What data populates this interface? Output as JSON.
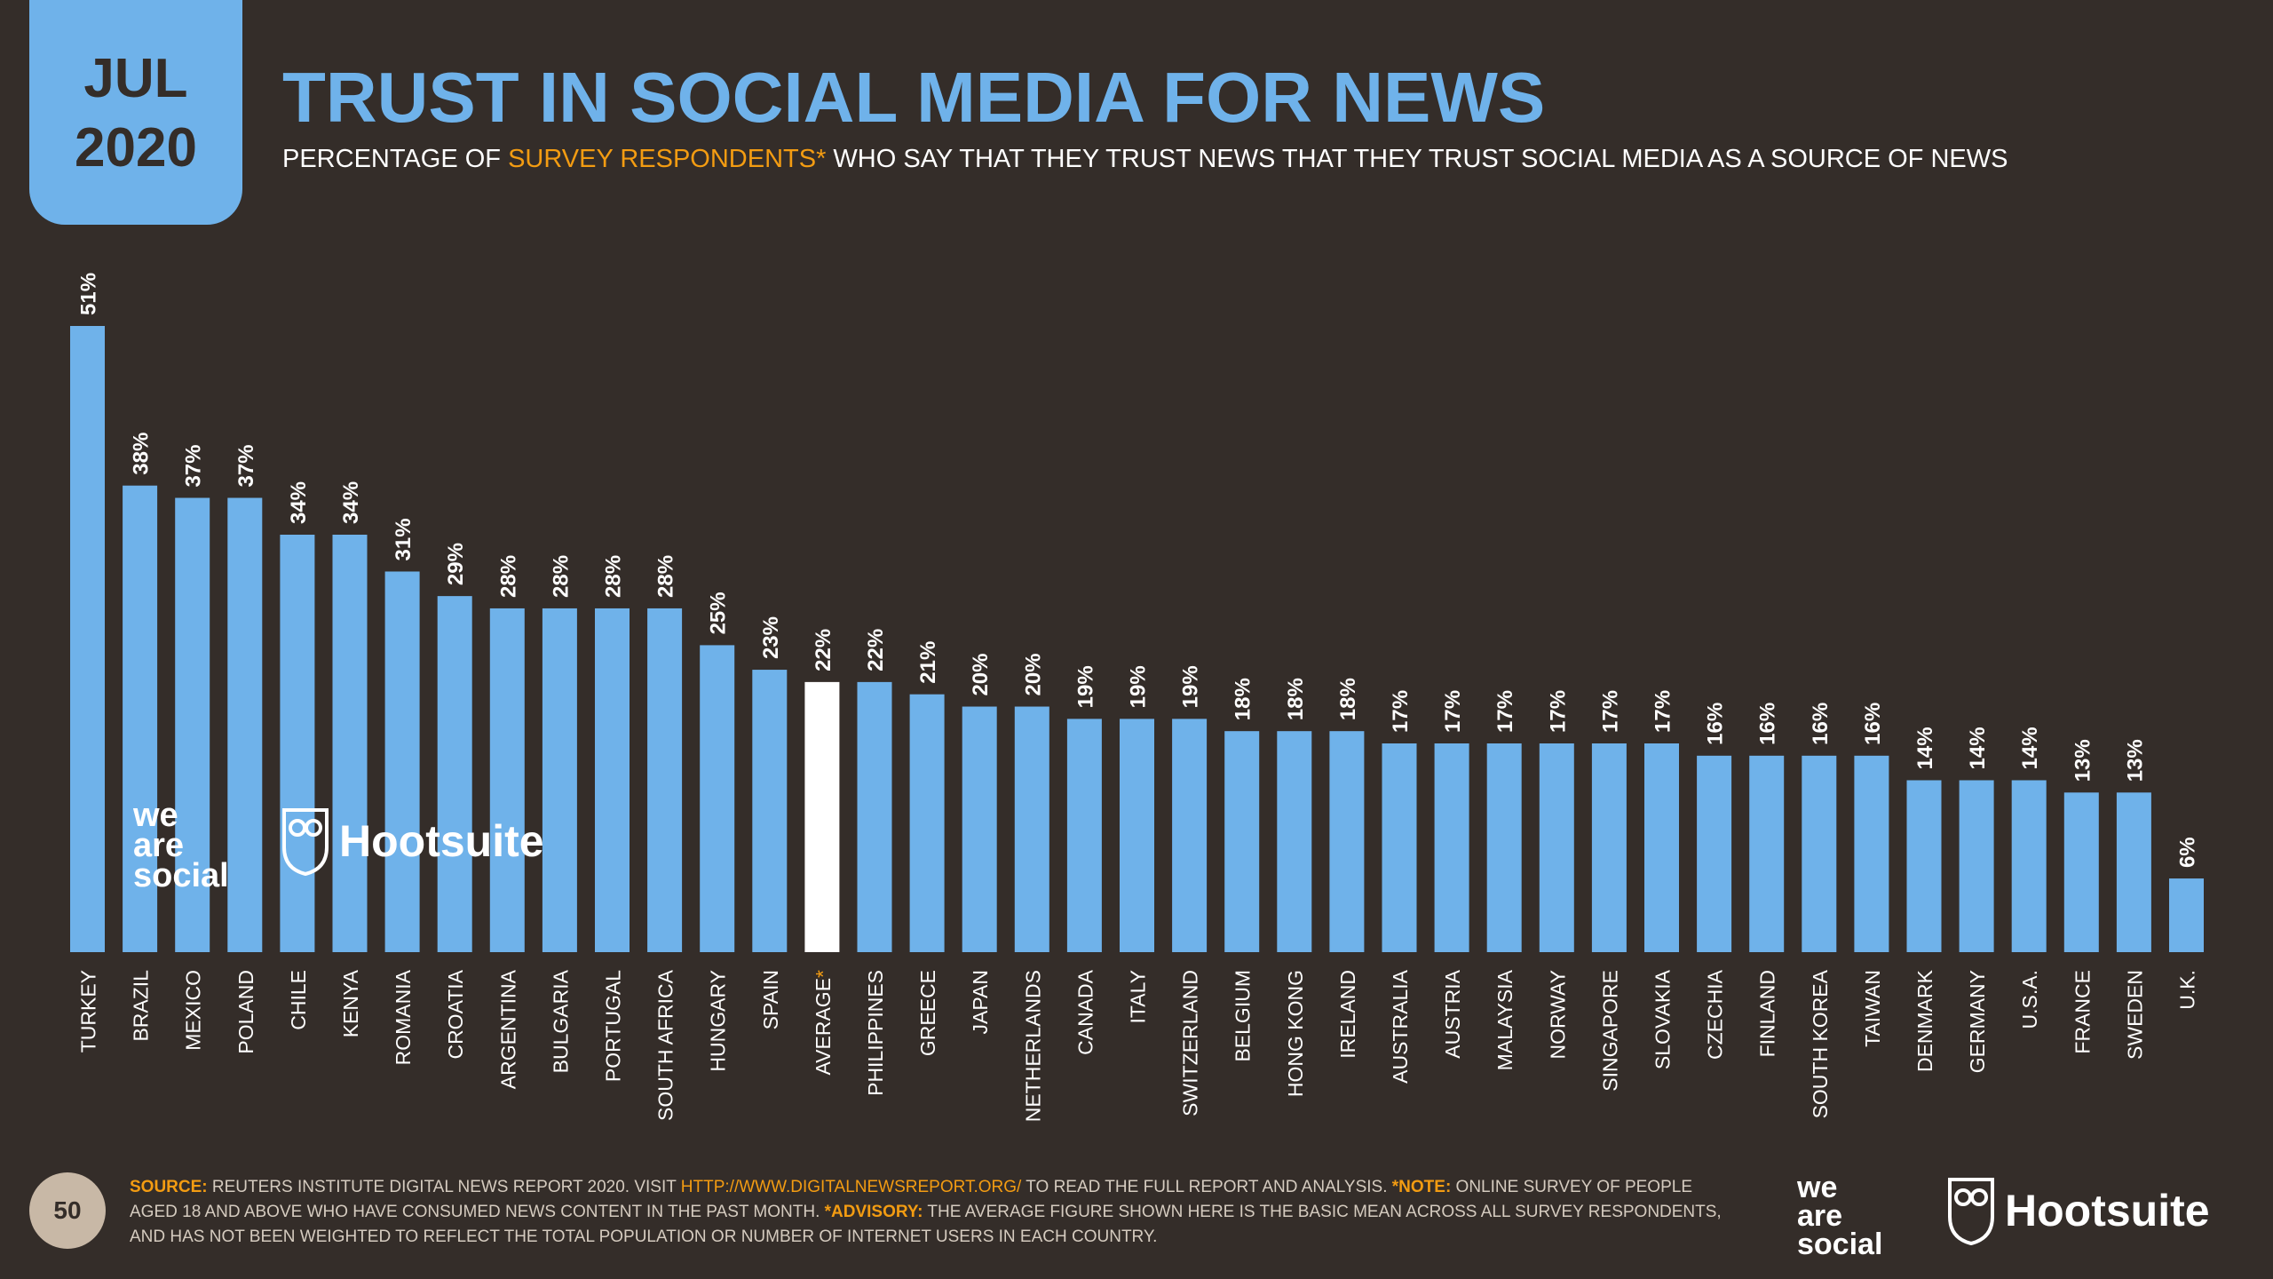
{
  "header": {
    "month": "JUL",
    "year": "2020",
    "title": "TRUST IN SOCIAL MEDIA FOR NEWS",
    "subtitle_part1": "PERCENTAGE OF ",
    "subtitle_highlight": "SURVEY RESPONDENTS*",
    "subtitle_part2": " WHO SAY THAT THEY TRUST NEWS THAT THEY TRUST SOCIAL MEDIA AS A SOURCE OF NEWS"
  },
  "colors": {
    "background": "#342d29",
    "bar": "#6fb2ea",
    "highlight_bar": "#ffffff",
    "accent": "#f39c12",
    "title": "#6fb2ea"
  },
  "chart_data": {
    "type": "bar",
    "orientation": "vertical",
    "categories": [
      "TURKEY",
      "BRAZIL",
      "MEXICO",
      "POLAND",
      "CHILE",
      "KENYA",
      "ROMANIA",
      "CROATIA",
      "ARGENTINA",
      "BULGARIA",
      "PORTUGAL",
      "SOUTH AFRICA",
      "HUNGARY",
      "SPAIN",
      "AVERAGE",
      "PHILIPPINES",
      "GREECE",
      "JAPAN",
      "NETHERLANDS",
      "CANADA",
      "ITALY",
      "SWITZERLAND",
      "BELGIUM",
      "HONG KONG",
      "IRELAND",
      "AUSTRALIA",
      "AUSTRIA",
      "MALAYSIA",
      "NORWAY",
      "SINGAPORE",
      "SLOVAKIA",
      "CZECHIA",
      "FINLAND",
      "SOUTH KOREA",
      "TAIWAN",
      "DENMARK",
      "GERMANY",
      "U.S.A.",
      "FRANCE",
      "SWEDEN",
      "U.K."
    ],
    "values": [
      51,
      38,
      37,
      37,
      34,
      34,
      31,
      29,
      28,
      28,
      28,
      28,
      25,
      23,
      22,
      22,
      21,
      20,
      20,
      19,
      19,
      19,
      18,
      18,
      18,
      17,
      17,
      17,
      17,
      17,
      17,
      16,
      16,
      16,
      16,
      14,
      14,
      14,
      13,
      13,
      6
    ],
    "value_labels": [
      "51%",
      "38%",
      "37%",
      "37%",
      "34%",
      "34%",
      "31%",
      "29%",
      "28%",
      "28%",
      "28%",
      "28%",
      "25%",
      "23%",
      "22%",
      "22%",
      "21%",
      "20%",
      "20%",
      "19%",
      "19%",
      "19%",
      "18%",
      "18%",
      "18%",
      "17%",
      "17%",
      "17%",
      "17%",
      "17%",
      "17%",
      "16%",
      "16%",
      "16%",
      "16%",
      "14%",
      "14%",
      "14%",
      "13%",
      "13%",
      "6%"
    ],
    "highlight_category": "AVERAGE",
    "highlight_marker": "*",
    "ylim": [
      0,
      51
    ],
    "grid": false,
    "legend": "none"
  },
  "watermark": {
    "we_are_social": [
      "we",
      "are",
      "social"
    ],
    "hootsuite": "Hootsuite"
  },
  "footer": {
    "page_number": "50",
    "source_label": "SOURCE:",
    "source_text": " REUTERS INSTITUTE DIGITAL NEWS REPORT 2020. VISIT ",
    "source_url": "HTTP://WWW.DIGITALNEWSREPORT.ORG/",
    "source_after": " TO READ THE FULL REPORT AND ANALYSIS. ",
    "note_label": "*NOTE:",
    "note_text": " ONLINE SURVEY OF PEOPLE AGED 18 AND ABOVE WHO HAVE CONSUMED NEWS CONTENT IN THE PAST MONTH. ",
    "advisory_label": "*ADVISORY:",
    "advisory_text": " THE AVERAGE FIGURE SHOWN HERE IS THE BASIC MEAN ACROSS ALL SURVEY RESPONDENTS, AND HAS NOT BEEN WEIGHTED TO REFLECT THE TOTAL POPULATION OR NUMBER OF INTERNET USERS IN EACH COUNTRY.",
    "logo_we_are_social": [
      "we",
      "are",
      "social"
    ],
    "logo_hootsuite": "Hootsuite"
  }
}
